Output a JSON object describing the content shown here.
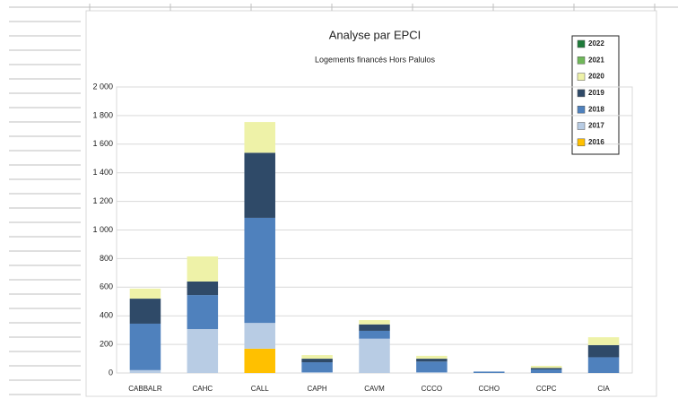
{
  "chart_data": {
    "type": "bar",
    "stacked": true,
    "title": "Analyse par EPCI",
    "subtitle": "Logements financés Hors Palulos",
    "categories": [
      "CABBALR",
      "CAHC",
      "CALL",
      "CAPH",
      "CAVM",
      "CCCO",
      "CCHO",
      "CCPC",
      "CIA"
    ],
    "series": [
      {
        "name": "2016",
        "color": "#ffc000",
        "values": [
          0,
          0,
          170,
          0,
          0,
          0,
          0,
          0,
          0
        ]
      },
      {
        "name": "2017",
        "color": "#b8cce4",
        "values": [
          20,
          307,
          180,
          5,
          240,
          5,
          0,
          0,
          0
        ]
      },
      {
        "name": "2018",
        "color": "#4f81bd",
        "values": [
          325,
          238,
          735,
          70,
          55,
          75,
          10,
          25,
          110
        ]
      },
      {
        "name": "2019",
        "color": "#2f4a68",
        "values": [
          175,
          95,
          455,
          25,
          45,
          20,
          0,
          10,
          85
        ]
      },
      {
        "name": "2020",
        "color": "#eef2a8",
        "values": [
          70,
          175,
          215,
          25,
          30,
          20,
          0,
          15,
          55
        ]
      },
      {
        "name": "2021",
        "color": "#70b85a",
        "values": [
          0,
          0,
          0,
          0,
          0,
          0,
          0,
          0,
          0
        ]
      },
      {
        "name": "2022",
        "color": "#1e7b3a",
        "values": [
          0,
          0,
          0,
          0,
          0,
          0,
          0,
          0,
          0
        ]
      }
    ],
    "ylim": [
      0,
      2000
    ],
    "yticks": [
      0,
      200,
      400,
      600,
      800,
      {
        "value": 1000,
        "label": "1 000"
      },
      {
        "value": 1200,
        "label": "1 200"
      },
      {
        "value": 1400,
        "label": "1 400"
      },
      {
        "value": 1600,
        "label": "1 600"
      },
      {
        "value": 1800,
        "label": "1 800"
      },
      {
        "value": 2000,
        "label": "2 000"
      }
    ],
    "grid": true,
    "legend": "top-right"
  }
}
